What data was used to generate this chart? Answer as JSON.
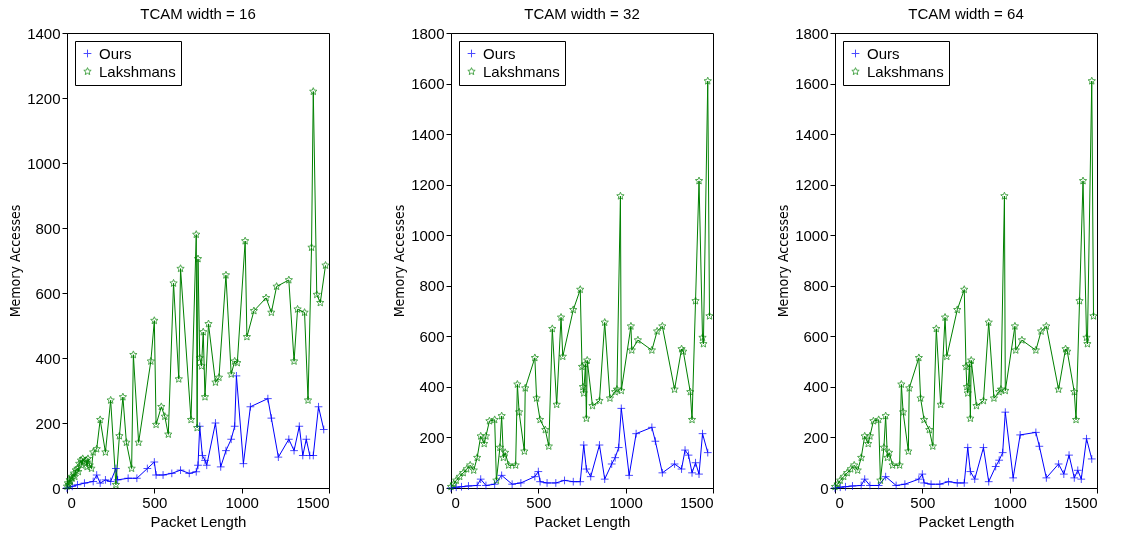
{
  "chart_data": [
    {
      "type": "line",
      "title": "TCAM width = 16",
      "xlabel": "Packet Length",
      "ylabel": "Memory Accesses",
      "xlim": [
        0,
        1500
      ],
      "xticks": [
        0,
        500,
        1000,
        1500
      ],
      "ylim": [
        0,
        1400
      ],
      "yticks": [
        0,
        200,
        400,
        600,
        800,
        1000,
        1200,
        1400
      ],
      "legend": "top left",
      "series": [
        {
          "name": "Ours",
          "color": "#0000ff",
          "marker": "cross",
          "x": [
            0,
            30,
            60,
            100,
            150,
            170,
            190,
            220,
            250,
            280,
            290,
            350,
            400,
            460,
            500,
            510,
            550,
            600,
            650,
            700,
            740,
            750,
            760,
            775,
            790,
            800,
            850,
            880,
            910,
            940,
            960,
            970,
            1010,
            1050,
            1150,
            1170,
            1210,
            1270,
            1300,
            1330,
            1350,
            1370,
            1390,
            1410,
            1440,
            1470
          ],
          "values": [
            0,
            5,
            10,
            15,
            20,
            40,
            15,
            25,
            20,
            60,
            25,
            30,
            30,
            60,
            80,
            40,
            40,
            45,
            55,
            45,
            50,
            70,
            190,
            100,
            85,
            70,
            200,
            65,
            115,
            150,
            190,
            345,
            75,
            250,
            275,
            215,
            95,
            150,
            115,
            190,
            100,
            150,
            100,
            100,
            250,
            180
          ]
        },
        {
          "name": "Lakshmans",
          "color": "#008000",
          "marker": "star",
          "x": [
            0,
            5,
            10,
            15,
            20,
            25,
            30,
            40,
            45,
            50,
            60,
            65,
            70,
            80,
            85,
            90,
            100,
            110,
            115,
            120,
            130,
            140,
            150,
            170,
            190,
            220,
            250,
            280,
            300,
            320,
            340,
            370,
            380,
            410,
            480,
            500,
            510,
            540,
            560,
            580,
            610,
            640,
            650,
            710,
            740,
            745,
            750,
            760,
            770,
            780,
            790,
            810,
            850,
            870,
            910,
            940,
            960,
            975,
            1020,
            1030,
            1070,
            1140,
            1170,
            1200,
            1270,
            1300,
            1320,
            1360,
            1380,
            1400,
            1410,
            1430,
            1450,
            1480
          ],
          "values": [
            5,
            15,
            10,
            25,
            20,
            35,
            30,
            45,
            35,
            55,
            60,
            50,
            75,
            85,
            70,
            90,
            80,
            85,
            65,
            90,
            70,
            60,
            110,
            120,
            210,
            110,
            270,
            10,
            160,
            280,
            140,
            60,
            410,
            140,
            390,
            515,
            195,
            250,
            220,
            165,
            630,
            335,
            675,
            210,
            780,
            185,
            705,
            400,
            375,
            480,
            280,
            505,
            325,
            340,
            655,
            350,
            390,
            385,
            760,
            465,
            545,
            585,
            540,
            620,
            640,
            390,
            550,
            540,
            270,
            740,
            1220,
            595,
            570,
            685
          ]
        }
      ]
    },
    {
      "type": "line",
      "title": "TCAM width = 32",
      "xlabel": "Packet Length",
      "ylabel": "Memory Accesses",
      "xlim": [
        0,
        1500
      ],
      "xticks": [
        0,
        500,
        1000,
        1500
      ],
      "ylim": [
        0,
        1800
      ],
      "yticks": [
        0,
        200,
        400,
        600,
        800,
        1000,
        1200,
        1400,
        1600,
        1800
      ],
      "legend": "top left",
      "series": [
        {
          "name": "Ours",
          "color": "#0000ff",
          "marker": "cross",
          "x": [
            0,
            30,
            60,
            100,
            150,
            170,
            200,
            250,
            290,
            350,
            400,
            480,
            500,
            510,
            550,
            600,
            650,
            700,
            740,
            760,
            775,
            800,
            850,
            880,
            920,
            940,
            960,
            975,
            1020,
            1060,
            1150,
            1170,
            1210,
            1280,
            1320,
            1340,
            1360,
            1380,
            1400,
            1420,
            1440,
            1470
          ],
          "values": [
            0,
            3,
            5,
            8,
            10,
            35,
            10,
            15,
            50,
            15,
            20,
            45,
            65,
            25,
            20,
            20,
            30,
            25,
            25,
            170,
            75,
            45,
            170,
            35,
            95,
            120,
            160,
            315,
            50,
            215,
            240,
            185,
            60,
            95,
            75,
            150,
            130,
            60,
            100,
            55,
            215,
            140
          ]
        },
        {
          "name": "Lakshmans",
          "color": "#008000",
          "marker": "star",
          "x": [
            0,
            15,
            30,
            50,
            70,
            90,
            110,
            130,
            150,
            170,
            190,
            200,
            220,
            250,
            260,
            280,
            290,
            300,
            310,
            330,
            370,
            380,
            390,
            420,
            425,
            480,
            490,
            510,
            540,
            560,
            580,
            605,
            630,
            640,
            700,
            740,
            750,
            755,
            760,
            770,
            775,
            780,
            810,
            850,
            880,
            910,
            940,
            950,
            970,
            975,
            1030,
            1035,
            1070,
            1150,
            1180,
            1210,
            1280,
            1320,
            1330,
            1370,
            1380,
            1400,
            1420,
            1440,
            1445,
            1470,
            1480
          ],
          "values": [
            5,
            15,
            30,
            45,
            60,
            75,
            90,
            70,
            120,
            205,
            175,
            205,
            265,
            270,
            30,
            160,
            285,
            120,
            140,
            90,
            90,
            410,
            300,
            145,
            395,
            515,
            355,
            270,
            230,
            165,
            630,
            330,
            675,
            520,
            705,
            785,
            480,
            400,
            375,
            490,
            275,
            505,
            325,
            345,
            655,
            355,
            380,
            390,
            1155,
            385,
            640,
            545,
            585,
            545,
            620,
            640,
            390,
            550,
            540,
            380,
            270,
            740,
            1215,
            595,
            570,
            1610,
            680
          ]
        }
      ]
    },
    {
      "type": "line",
      "title": "TCAM width = 64",
      "xlabel": "Packet Length",
      "ylabel": "Memory Accesses",
      "xlim": [
        0,
        1500
      ],
      "xticks": [
        0,
        500,
        1000,
        1500
      ],
      "ylim": [
        0,
        1800
      ],
      "yticks": [
        0,
        200,
        400,
        600,
        800,
        1000,
        1200,
        1400,
        1600,
        1800
      ],
      "legend": "top left",
      "series": [
        {
          "name": "Ours",
          "color": "#0000ff",
          "marker": "cross",
          "x": [
            0,
            30,
            60,
            100,
            150,
            170,
            200,
            250,
            290,
            350,
            400,
            480,
            500,
            510,
            550,
            600,
            650,
            700,
            740,
            760,
            775,
            800,
            850,
            880,
            920,
            940,
            960,
            975,
            1020,
            1060,
            1150,
            1170,
            1210,
            1280,
            1310,
            1340,
            1370,
            1390,
            1410,
            1440,
            1470
          ],
          "values": [
            0,
            3,
            5,
            8,
            10,
            35,
            10,
            10,
            45,
            10,
            15,
            35,
            55,
            20,
            15,
            15,
            25,
            20,
            20,
            160,
            65,
            35,
            160,
            25,
            85,
            110,
            140,
            300,
            40,
            210,
            220,
            165,
            40,
            95,
            55,
            130,
            40,
            70,
            35,
            195,
            115
          ]
        },
        {
          "name": "Lakshmans",
          "color": "#008000",
          "marker": "star",
          "x": [
            0,
            15,
            30,
            50,
            70,
            90,
            110,
            130,
            150,
            170,
            190,
            200,
            220,
            250,
            260,
            280,
            290,
            300,
            310,
            330,
            370,
            380,
            390,
            420,
            425,
            480,
            490,
            510,
            540,
            560,
            580,
            605,
            630,
            640,
            700,
            740,
            750,
            755,
            760,
            770,
            775,
            780,
            810,
            850,
            880,
            910,
            940,
            950,
            970,
            975,
            1030,
            1035,
            1070,
            1150,
            1180,
            1210,
            1280,
            1320,
            1330,
            1370,
            1380,
            1400,
            1420,
            1440,
            1445,
            1470,
            1480
          ],
          "values": [
            5,
            15,
            30,
            45,
            60,
            75,
            90,
            70,
            120,
            205,
            175,
            205,
            265,
            270,
            30,
            160,
            285,
            120,
            140,
            90,
            90,
            410,
            300,
            145,
            395,
            515,
            355,
            270,
            230,
            165,
            630,
            330,
            675,
            520,
            705,
            785,
            480,
            400,
            375,
            490,
            275,
            505,
            325,
            345,
            655,
            355,
            380,
            390,
            1155,
            385,
            640,
            545,
            585,
            545,
            620,
            640,
            390,
            550,
            540,
            380,
            270,
            740,
            1215,
            595,
            570,
            1610,
            680
          ]
        }
      ]
    }
  ]
}
